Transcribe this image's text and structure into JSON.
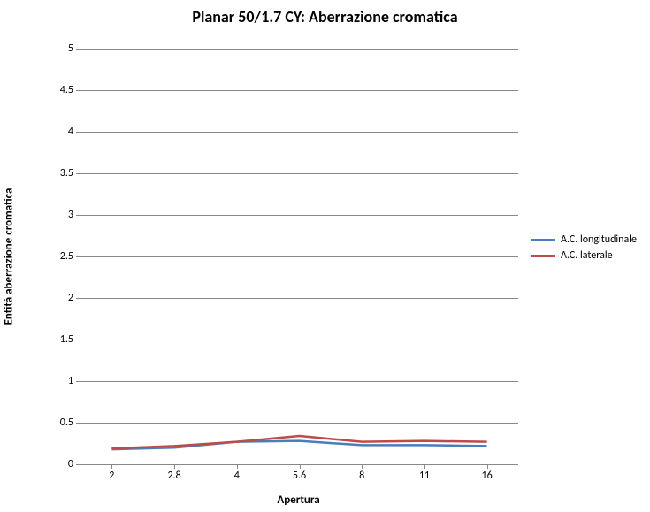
{
  "chart": {
    "type": "line",
    "title": "Planar 50/1.7 CY: Aberrazione cromatica",
    "title_fontsize": 18,
    "xlabel": "Apertura",
    "ylabel": "Entità aberrazione cromatica",
    "label_fontsize": 13,
    "tick_fontsize": 12,
    "background_color": "#ffffff",
    "grid_color": "#888888",
    "ylim": [
      0,
      5
    ],
    "ytick_step": 0.5,
    "yticks": [
      "0",
      "0.5",
      "1",
      "1.5",
      "2",
      "2.5",
      "3",
      "3.5",
      "4",
      "4.5",
      "5"
    ],
    "categories": [
      "2",
      "2.8",
      "4",
      "5.6",
      "8",
      "11",
      "16"
    ],
    "series": [
      {
        "name": "A.C. longitudinale",
        "color": "#4a7ebb",
        "line_width": 2.5,
        "values": [
          0.18,
          0.2,
          0.27,
          0.28,
          0.23,
          0.23,
          0.22
        ]
      },
      {
        "name": "A.C. laterale",
        "color": "#be4b48",
        "line_width": 2.5,
        "values": [
          0.19,
          0.22,
          0.27,
          0.34,
          0.27,
          0.28,
          0.27
        ]
      }
    ],
    "legend_fontsize": 12
  }
}
